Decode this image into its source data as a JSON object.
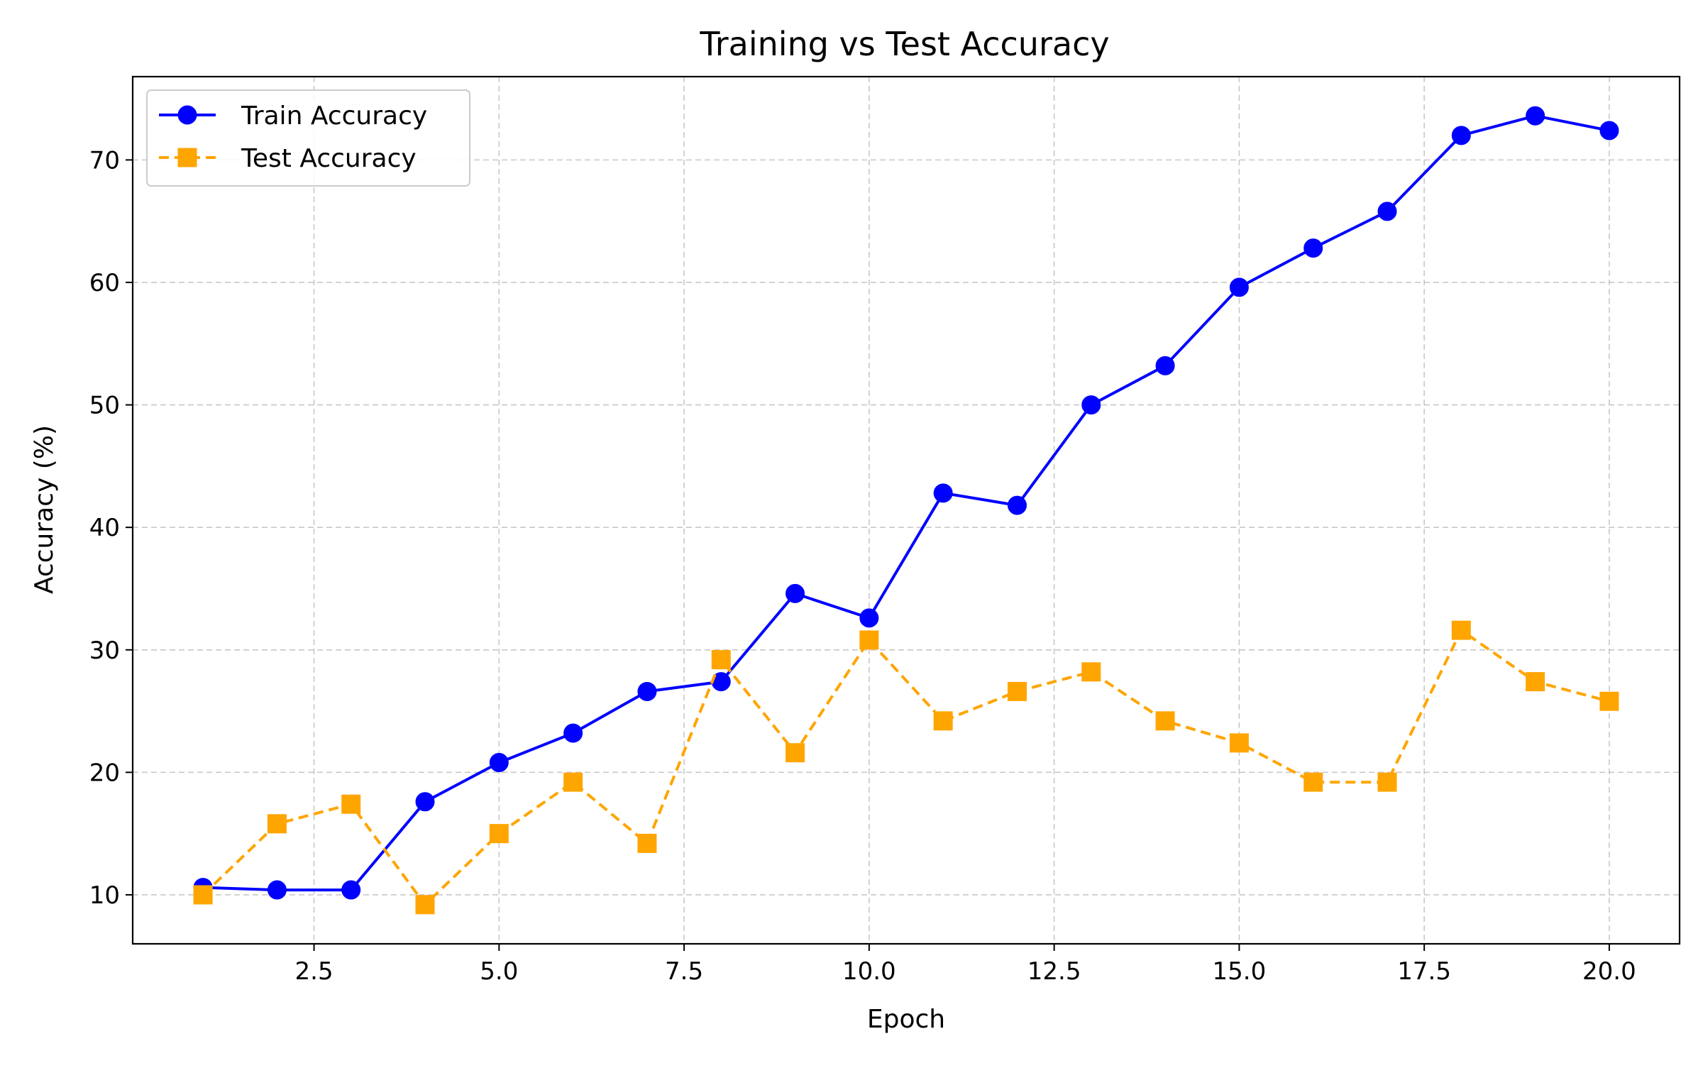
{
  "chart_data": {
    "type": "line",
    "title": "Training vs Test Accuracy",
    "xlabel": "Epoch",
    "ylabel": "Accuracy (%)",
    "xlim": [
      0.05,
      20.95
    ],
    "ylim": [
      6.0,
      76.8
    ],
    "xticks": [
      2.5,
      5.0,
      7.5,
      10.0,
      12.5,
      15.0,
      17.5,
      20.0
    ],
    "xtick_labels": [
      "2.5",
      "5.0",
      "7.5",
      "10.0",
      "12.5",
      "15.0",
      "17.5",
      "20.0"
    ],
    "yticks": [
      10,
      20,
      30,
      40,
      50,
      60,
      70
    ],
    "ytick_labels": [
      "10",
      "20",
      "30",
      "40",
      "50",
      "60",
      "70"
    ],
    "grid": true,
    "legend_position": "top-left",
    "x": [
      1,
      2,
      3,
      4,
      5,
      6,
      7,
      8,
      9,
      10,
      11,
      12,
      13,
      14,
      15,
      16,
      17,
      18,
      19,
      20
    ],
    "series": [
      {
        "name": "Train Accuracy",
        "color": "#0000ff",
        "line_style": "solid",
        "marker": "circle",
        "values": [
          10.6,
          10.4,
          10.4,
          17.6,
          20.8,
          23.2,
          26.6,
          27.4,
          34.6,
          32.6,
          42.8,
          41.8,
          50.0,
          53.2,
          59.6,
          62.8,
          65.8,
          72.0,
          73.6,
          72.4
        ]
      },
      {
        "name": "Test Accuracy",
        "color": "#ffa500",
        "line_style": "dashed",
        "marker": "square",
        "values": [
          10.0,
          15.8,
          17.4,
          9.2,
          15.0,
          19.2,
          14.2,
          29.2,
          21.6,
          30.8,
          24.2,
          26.6,
          28.2,
          24.2,
          22.4,
          19.2,
          19.2,
          31.6,
          27.4,
          25.8
        ]
      }
    ]
  }
}
